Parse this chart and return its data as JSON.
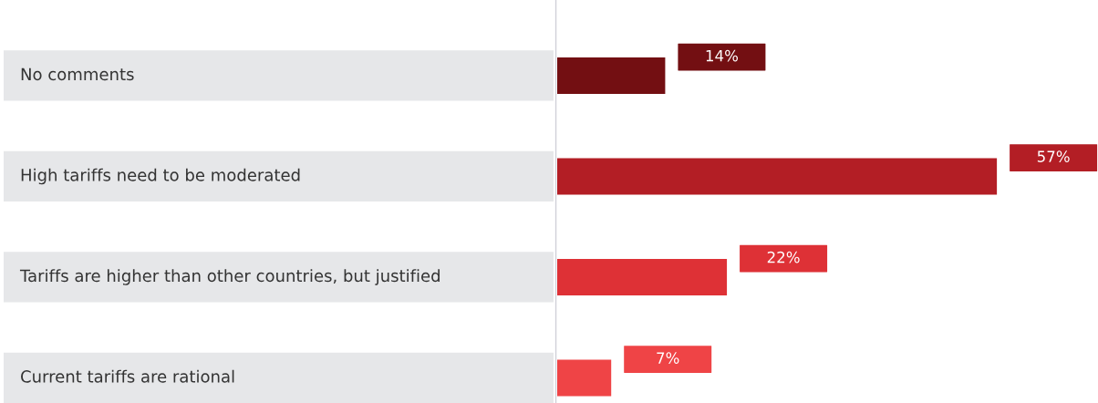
{
  "chart_data": {
    "type": "bar",
    "orientation": "horizontal",
    "categories": [
      "No comments",
      "High tariffs need to be moderated",
      "Tariffs are higher than other countries, but justified",
      "Current tariffs are rational"
    ],
    "values": [
      14,
      57,
      22,
      7
    ],
    "colors": [
      "#730f12",
      "#b31e25",
      "#de3136",
      "#ef4446"
    ],
    "value_labels": [
      "14%",
      "57%",
      "22%",
      "7%"
    ],
    "grid": false,
    "tick_labels": false
  }
}
